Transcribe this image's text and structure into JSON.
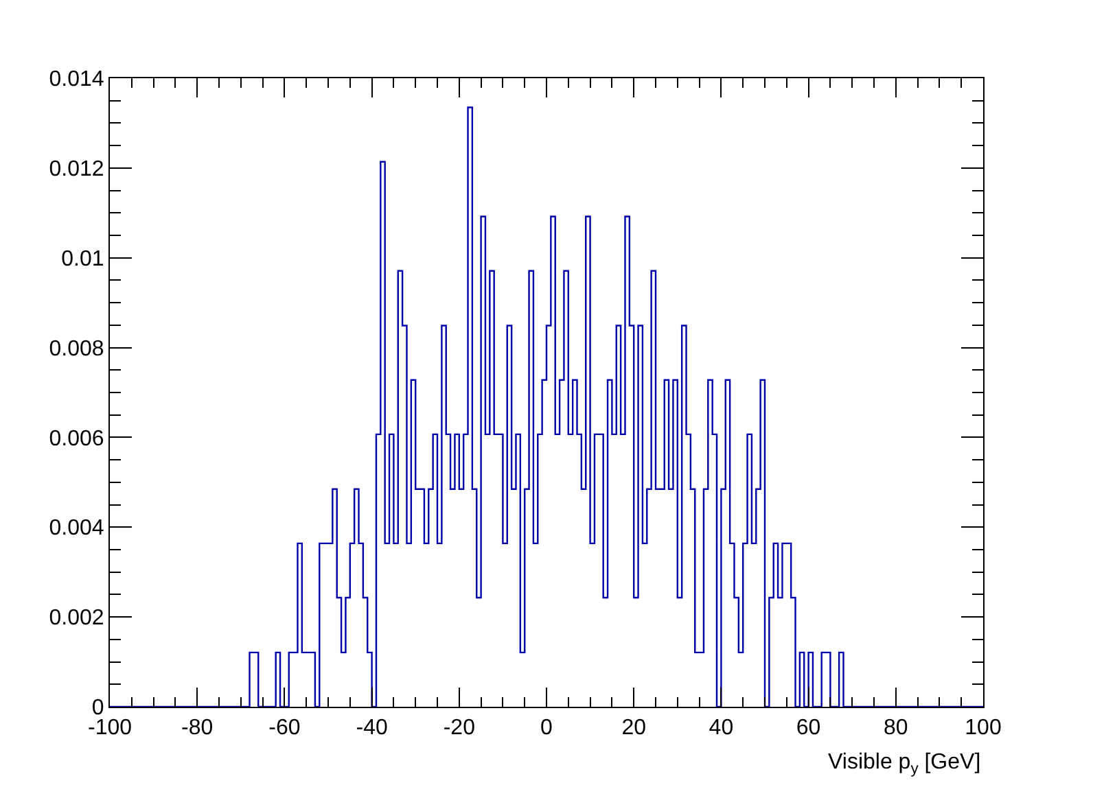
{
  "chart_data": {
    "type": "histogram",
    "xlabel": "Visible p$_{y}$ [GeV]",
    "bins": [
      -100,
      -99,
      -98,
      -97,
      -96,
      -95,
      -94,
      -93,
      -92,
      -91,
      -90,
      -89,
      -88,
      -87,
      -86,
      -85,
      -84,
      -83,
      -82,
      -81,
      -80,
      -79,
      -78,
      -77,
      -76,
      -75,
      -74,
      -73,
      -72,
      -71,
      -70,
      -69,
      -68,
      -67,
      -66,
      -65,
      -64,
      -63,
      -62,
      -61,
      -60,
      -59,
      -58,
      -57,
      -56,
      -55,
      -54,
      -53,
      -52,
      -51,
      -50,
      -49,
      -48,
      -47,
      -46,
      -45,
      -44,
      -43,
      -42,
      -41,
      -40,
      -39,
      -38,
      -37,
      -36,
      -35,
      -34,
      -33,
      -32,
      -31,
      -30,
      -29,
      -28,
      -27,
      -26,
      -25,
      -24,
      -23,
      -22,
      -21,
      -20,
      -19,
      -18,
      -17,
      -16,
      -15,
      -14,
      -13,
      -12,
      -11,
      -10,
      -9,
      -8,
      -7,
      -6,
      -5,
      -4,
      -3,
      -2,
      -1,
      0,
      1,
      2,
      3,
      4,
      5,
      6,
      7,
      8,
      9,
      10,
      11,
      12,
      13,
      14,
      15,
      16,
      17,
      18,
      19,
      20,
      21,
      22,
      23,
      24,
      25,
      26,
      27,
      28,
      29,
      30,
      31,
      32,
      33,
      34,
      35,
      36,
      37,
      38,
      39,
      40,
      41,
      42,
      43,
      44,
      45,
      46,
      47,
      48,
      49,
      50,
      51,
      52,
      53,
      54,
      55,
      56,
      57,
      58,
      59,
      60,
      61,
      62,
      63,
      64,
      65,
      66,
      67,
      68,
      69,
      70,
      71,
      72,
      73,
      74,
      75,
      76,
      77,
      78,
      79,
      80,
      81,
      82,
      83,
      84,
      85,
      86,
      87,
      88,
      89,
      90,
      91,
      92,
      93,
      94,
      95,
      96,
      97,
      98,
      99,
      100
    ],
    "values": [
      0,
      0,
      0,
      0,
      0,
      0,
      0,
      0,
      0,
      0,
      0,
      0,
      0,
      0,
      0,
      0,
      0,
      0,
      0,
      0,
      0,
      0,
      0,
      0,
      0,
      0,
      0,
      0,
      0,
      0,
      0,
      0,
      0.00121,
      0.00121,
      0,
      0,
      0,
      0,
      0.00121,
      0,
      0,
      0.00121,
      0.00121,
      0.00364,
      0.00121,
      0.00121,
      0.00121,
      0,
      0.00364,
      0.00364,
      0.00364,
      0.00485,
      0.00243,
      0.00121,
      0.00243,
      0.00364,
      0.00485,
      0.00364,
      0.00243,
      0.00121,
      0,
      0.00607,
      0.01214,
      0.00364,
      0.00607,
      0.00364,
      0.00971,
      0.00849,
      0.00364,
      0.00728,
      0.00485,
      0.00485,
      0.00364,
      0.00485,
      0.00607,
      0.00364,
      0.00849,
      0.00607,
      0.00485,
      0.00607,
      0.00485,
      0.00607,
      0.01335,
      0.00485,
      0.00243,
      0.01092,
      0.00607,
      0.00971,
      0.00607,
      0.00607,
      0.00364,
      0.00849,
      0.00485,
      0.00607,
      0.00121,
      0.00485,
      0.00971,
      0.00364,
      0.00607,
      0.00728,
      0.00849,
      0.01092,
      0.00607,
      0.00728,
      0.00971,
      0.00607,
      0.00728,
      0.00607,
      0.00485,
      0.01092,
      0.00364,
      0.00607,
      0.00607,
      0.00243,
      0.00728,
      0.00607,
      0.00849,
      0.00607,
      0.01092,
      0.00849,
      0.00243,
      0.00849,
      0.00364,
      0.00485,
      0.00971,
      0.00485,
      0.00485,
      0.00728,
      0.00485,
      0.00728,
      0.00243,
      0.00849,
      0.00607,
      0.00485,
      0.00121,
      0.00121,
      0.00485,
      0.00728,
      0.00607,
      0,
      0.00485,
      0.00728,
      0.00364,
      0.00243,
      0.00121,
      0.00364,
      0.00607,
      0.00364,
      0.00485,
      0.00728,
      0,
      0.00243,
      0.00364,
      0.00243,
      0.00364,
      0.00364,
      0.00243,
      0,
      0.00121,
      0,
      0.00121,
      0,
      0,
      0.00121,
      0.00121,
      0,
      0,
      0.00121,
      0,
      0,
      0,
      0,
      0,
      0,
      0,
      0,
      0,
      0,
      0,
      0,
      0,
      0,
      0,
      0,
      0,
      0,
      0,
      0,
      0,
      0,
      0,
      0,
      0,
      0,
      0,
      0,
      0,
      0,
      0,
      0
    ],
    "color": "#0000aa",
    "xlim": [
      -100,
      100
    ],
    "xticks": [
      -100,
      -80,
      -60,
      -40,
      -20,
      0,
      20,
      40,
      60,
      80,
      100
    ],
    "ylim": [
      0,
      0.014
    ],
    "yticks": [
      0,
      0.002,
      0.004,
      0.006,
      0.008,
      {
        "value": 0.01,
        "label": "0.01"
      },
      0.012,
      0.014
    ]
  }
}
